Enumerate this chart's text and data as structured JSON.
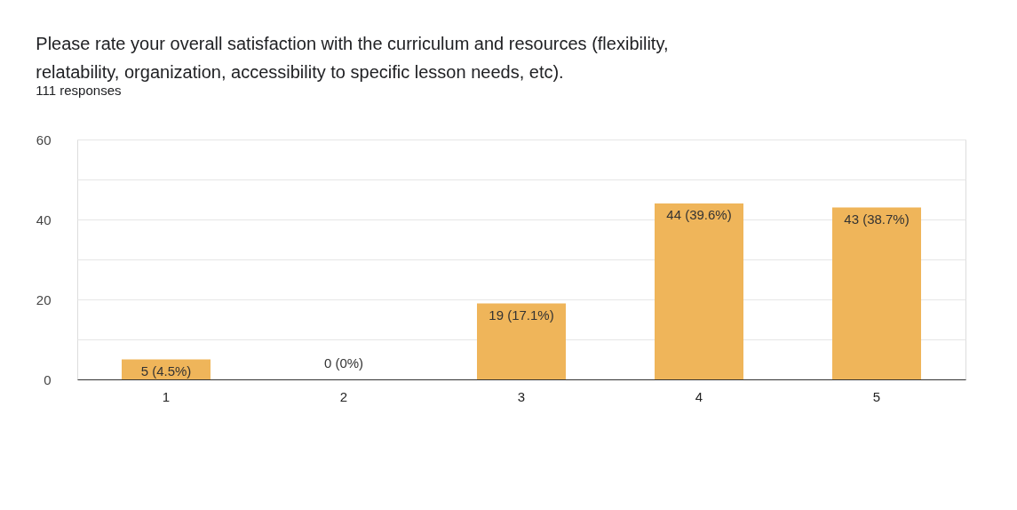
{
  "chart_data": {
    "type": "bar",
    "title": [
      "Please rate your overall satisfaction with the curriculum and resources (flexibility,",
      "relatability, organization, accessibility to specific lesson needs, etc)."
    ],
    "subtitle": "111 responses",
    "categories": [
      "1",
      "2",
      "3",
      "4",
      "5"
    ],
    "values": [
      5,
      0,
      19,
      44,
      43
    ],
    "value_labels": [
      "5 (4.5%)",
      "0 (0%)",
      "19 (17.1%)",
      "44 (39.6%)",
      "43 (38.7%)"
    ],
    "color": "#efb55a",
    "ylim": [
      0,
      60
    ],
    "yticks": [
      0,
      {
        "value": 10,
        "label": null
      },
      20,
      {
        "value": 30,
        "label": null
      },
      40,
      {
        "value": 50,
        "label": null
      },
      60
    ],
    "grid": "y"
  }
}
